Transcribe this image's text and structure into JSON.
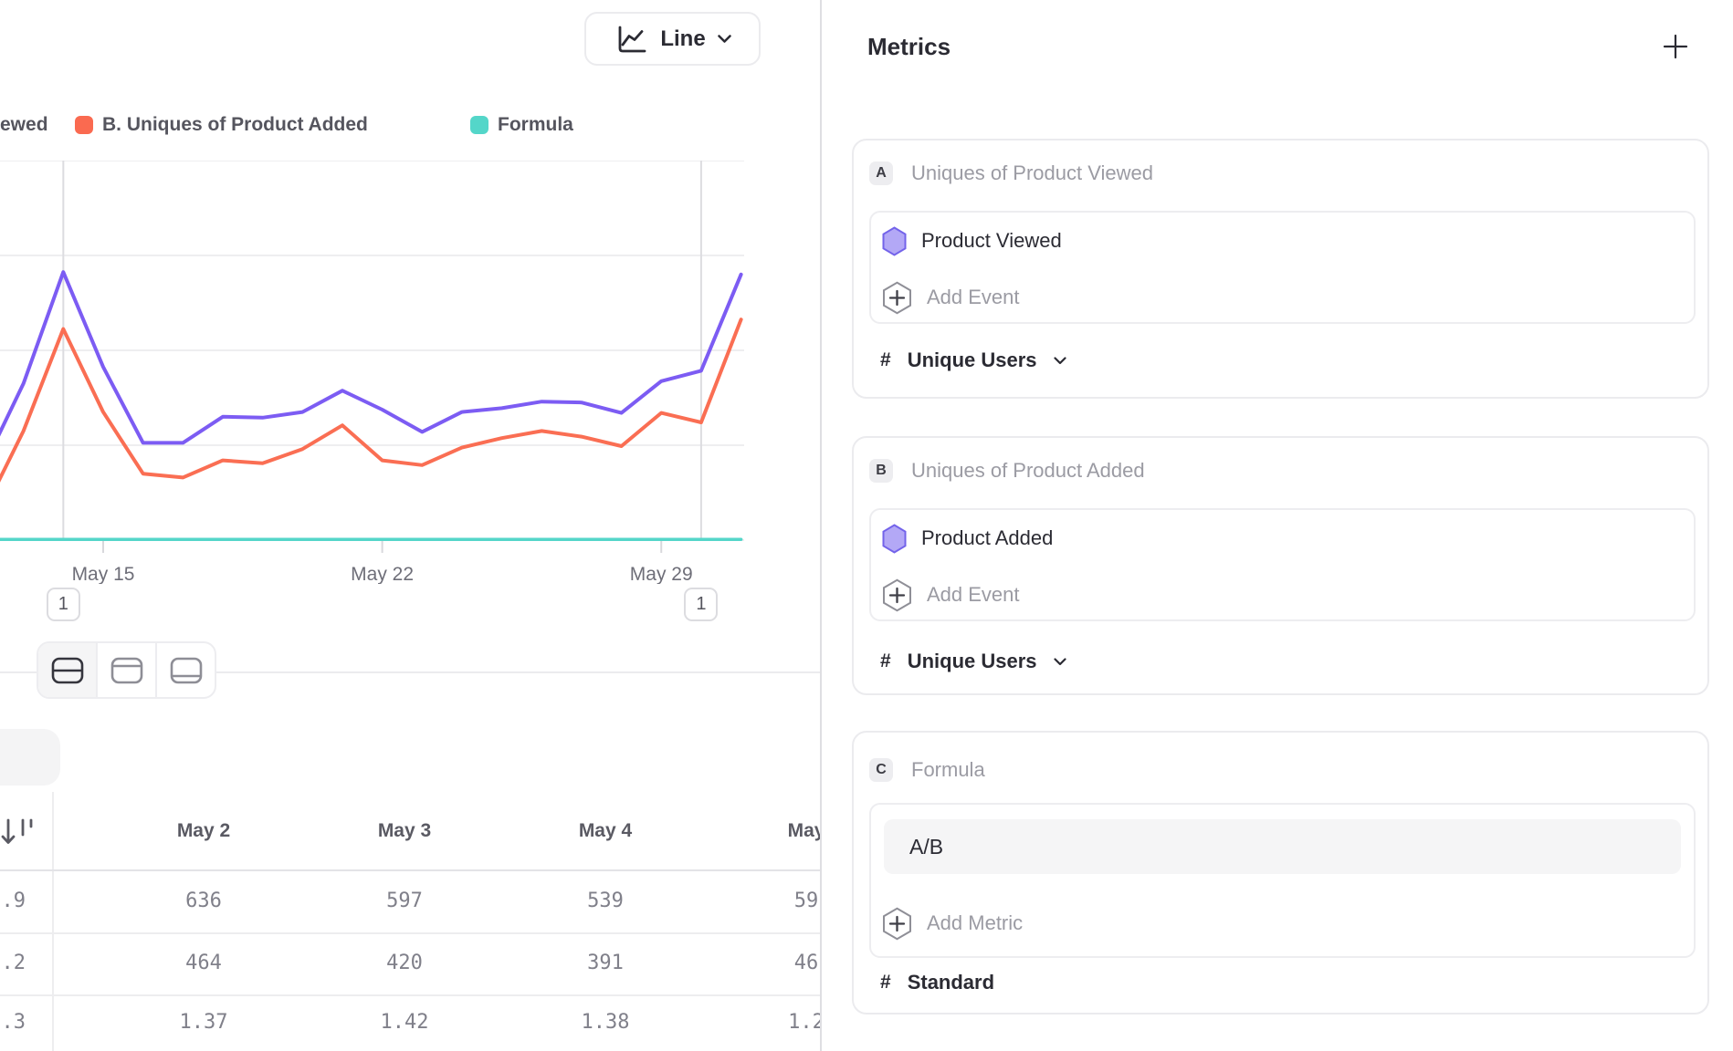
{
  "chart_header": {
    "type_button_label": "Line"
  },
  "legend": {
    "items": [
      {
        "label": "ewed",
        "color": null
      },
      {
        "label": "B. Uniques of Product Added",
        "color": "#fa6a50"
      },
      {
        "label": "Formula",
        "color": "#54d6c9"
      }
    ]
  },
  "chart_data": {
    "type": "line",
    "x_days": [
      12,
      13,
      14,
      15,
      16,
      17,
      18,
      19,
      20,
      21,
      22,
      23,
      24,
      25,
      26,
      27,
      28,
      29,
      30,
      31
    ],
    "x_month": "May",
    "tick_labels": [
      {
        "label": "May 15",
        "day": 15
      },
      {
        "label": "May 22",
        "day": 22
      },
      {
        "label": "May 29",
        "day": 29
      }
    ],
    "ylim": [
      0,
      800
    ],
    "grid": "horizontal",
    "legend_position": "top",
    "series": [
      {
        "name": "A. Uniques of Product Viewed",
        "color": "#7c5cf3",
        "values": [
          155,
          330,
          565,
          365,
          205,
          205,
          260,
          258,
          270,
          315,
          275,
          228,
          270,
          278,
          292,
          290,
          268,
          335,
          357,
          560
        ]
      },
      {
        "name": "B. Uniques of Product Added",
        "color": "#fa6e53",
        "values": [
          60,
          230,
          445,
          270,
          140,
          132,
          168,
          162,
          192,
          242,
          168,
          158,
          195,
          215,
          230,
          218,
          198,
          268,
          248,
          465
        ]
      },
      {
        "name": "Formula",
        "color": "#54d6c9",
        "values": [
          1.35,
          1.35,
          1.35,
          1.35,
          1.35,
          1.35,
          1.35,
          1.35,
          1.35,
          1.35,
          1.35,
          1.35,
          1.35,
          1.35,
          1.35,
          1.35,
          1.35,
          1.35,
          1.35,
          1.35
        ]
      }
    ],
    "annotations": [
      {
        "label": "1",
        "day": 14
      },
      {
        "label": "1",
        "day": 30
      }
    ]
  },
  "table": {
    "left_col_fragments": [
      ".9",
      ".2",
      ".3"
    ],
    "columns": [
      "May 2",
      "May 3",
      "May 4",
      "May"
    ],
    "rows": [
      [
        "636",
        "597",
        "539",
        "59"
      ],
      [
        "464",
        "420",
        "391",
        "46"
      ],
      [
        "1.37",
        "1.42",
        "1.38",
        "1.2"
      ]
    ]
  },
  "metrics_panel": {
    "title": "Metrics",
    "cards": [
      {
        "badge": "A",
        "title": "Uniques of Product Viewed",
        "event": "Product Viewed",
        "add_label": "Add Event",
        "measure_prefix": "#",
        "measure": "Unique Users",
        "has_dropdown": true
      },
      {
        "badge": "B",
        "title": "Uniques of Product Added",
        "event": "Product Added",
        "add_label": "Add Event",
        "measure_prefix": "#",
        "measure": "Unique Users",
        "has_dropdown": true
      },
      {
        "badge": "C",
        "title": "Formula",
        "formula_value": "A/B",
        "add_label": "Add Metric",
        "measure_prefix": "#",
        "measure": "Standard",
        "has_dropdown": false
      }
    ]
  },
  "colors": {
    "accent_purple": "#7c5cf3",
    "accent_orange": "#fa6e53",
    "accent_teal": "#54d6c9",
    "hexagon_fill": "#b3a8f6",
    "hexagon_stroke": "#7363ea",
    "gridline": "#e9e9ec"
  }
}
